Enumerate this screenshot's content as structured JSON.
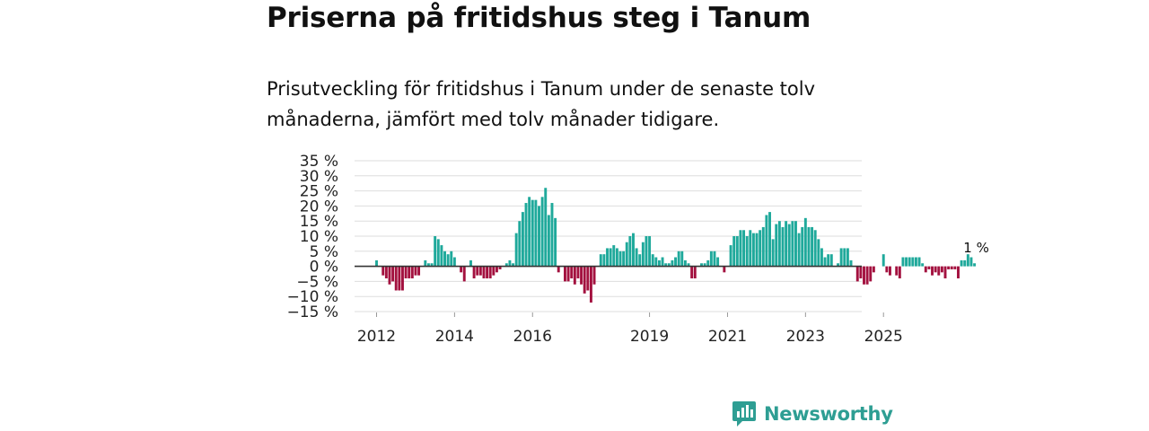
{
  "title": "Priserna på fritidshus steg i Tanum",
  "subtitle": "Prisutveckling för fritidshus i Tanum under de senaste tolv månaderna, jämfört med tolv månader tidigare.",
  "brand": "Newsworthy",
  "colors": {
    "positive": "#1fa99b",
    "negative": "#a3113f",
    "grid": "#dddddd",
    "zero_line": "#333333",
    "brand": "#2e9e93"
  },
  "chart_data": {
    "type": "bar",
    "x_start": "2012-01",
    "x_tick_labels": [
      "2012",
      "2014",
      "2016",
      "2019",
      "2021",
      "2023",
      "2025"
    ],
    "y_tick_labels": [
      "35 %",
      "30 %",
      "25 %",
      "20 %",
      "15 %",
      "10 %",
      "5 %",
      "0 %",
      "−5 %",
      "−10 %",
      "−15 %"
    ],
    "ylim": [
      -15,
      35
    ],
    "grid": true,
    "annotation": {
      "text": "1 %",
      "value": 1
    },
    "values": [
      2,
      0,
      -3,
      -4,
      -6,
      -5,
      -8,
      -8,
      -8,
      -4,
      -4,
      -4,
      -3,
      -3,
      0,
      2,
      1,
      1,
      10,
      9,
      7,
      5,
      4,
      5,
      3,
      0,
      -2,
      -5,
      0,
      2,
      -4,
      -3,
      -3,
      -4,
      -4,
      -4,
      -3,
      -2,
      -1,
      0,
      1,
      2,
      1,
      11,
      15,
      18,
      21,
      23,
      22,
      22,
      20,
      23,
      26,
      17,
      21,
      16,
      -2,
      0,
      -5,
      -5,
      -4,
      -6,
      -4,
      -6,
      -9,
      -8,
      -12,
      -6,
      0,
      4,
      4,
      6,
      6,
      7,
      6,
      5,
      5,
      8,
      10,
      11,
      6,
      4,
      8,
      10,
      10,
      4,
      3,
      2,
      3,
      1,
      1,
      2,
      3,
      5,
      5,
      2,
      1,
      -4,
      -4,
      0,
      1,
      1,
      2,
      5,
      5,
      3,
      0,
      -2,
      0,
      7,
      10,
      10,
      12,
      12,
      10,
      12,
      11,
      11,
      12,
      13,
      17,
      18,
      9,
      14,
      15,
      13,
      15,
      14,
      15,
      15,
      11,
      13,
      16,
      13,
      13,
      12,
      9,
      6,
      3,
      4,
      4,
      0,
      1,
      6,
      6,
      6,
      2,
      0,
      -5,
      -4,
      -6,
      -6,
      -5,
      -2,
      0,
      0,
      4,
      -2,
      -3,
      0,
      -3,
      -4,
      3,
      3,
      3,
      3,
      3,
      3,
      1,
      -2,
      -1,
      -3,
      -2,
      -3,
      -2,
      -4,
      -1,
      -1,
      -1,
      -4,
      2,
      2,
      4,
      3,
      1
    ]
  }
}
